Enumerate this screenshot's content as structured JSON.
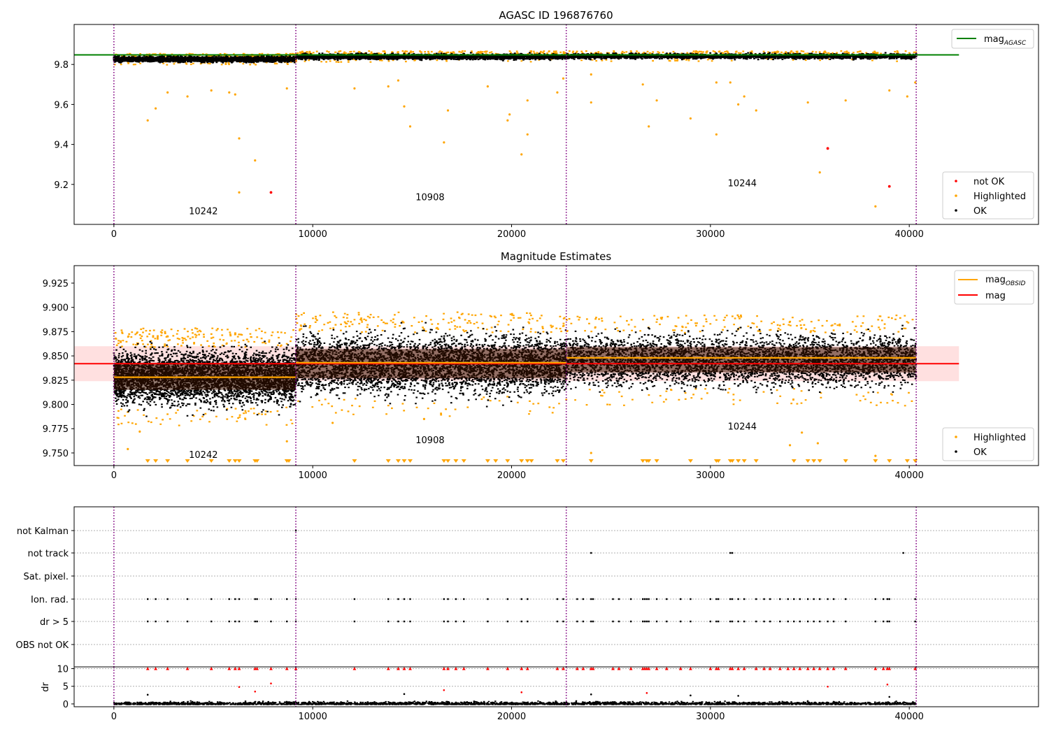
{
  "chart_data": [
    {
      "type": "scatter",
      "title": "AGASC ID 196876760",
      "xlim": [
        -2000,
        46500
      ],
      "ylim": [
        9.0,
        10.0
      ],
      "xticks": [
        0,
        10000,
        20000,
        30000,
        40000
      ],
      "yticks": [
        9.2,
        9.4,
        9.6,
        9.8
      ],
      "obsid_boundaries": [
        0,
        9150,
        22750,
        40350
      ],
      "obsid_labels": [
        {
          "text": "10242",
          "x": 4500,
          "y": 9.05
        },
        {
          "text": "10908",
          "x": 15900,
          "y": 9.12
        },
        {
          "text": "10244",
          "x": 31600,
          "y": 9.19
        }
      ],
      "mag_agasc": {
        "value": 9.848,
        "x_range": [
          -2000,
          42500
        ]
      },
      "bands": [
        {
          "x_range": [
            0,
            9150
          ],
          "center": 9.83,
          "spread": 0.014
        },
        {
          "x_range": [
            9150,
            22750
          ],
          "center": 9.843,
          "spread": 0.014
        },
        {
          "x_range": [
            22750,
            40350
          ],
          "center": 9.845,
          "spread": 0.013
        }
      ],
      "outliers_highlighted": [
        [
          1700,
          9.52
        ],
        [
          2100,
          9.58
        ],
        [
          2700,
          9.66
        ],
        [
          3700,
          9.64
        ],
        [
          4900,
          9.67
        ],
        [
          5800,
          9.66
        ],
        [
          6100,
          9.65
        ],
        [
          6300,
          9.43
        ],
        [
          6300,
          9.16
        ],
        [
          7100,
          9.32
        ],
        [
          8700,
          9.68
        ],
        [
          12100,
          9.68
        ],
        [
          13800,
          9.69
        ],
        [
          14300,
          9.72
        ],
        [
          14600,
          9.59
        ],
        [
          14900,
          9.49
        ],
        [
          16600,
          9.41
        ],
        [
          16800,
          9.57
        ],
        [
          18800,
          9.69
        ],
        [
          19800,
          9.52
        ],
        [
          19900,
          9.55
        ],
        [
          20500,
          9.35
        ],
        [
          20800,
          9.45
        ],
        [
          20800,
          9.62
        ],
        [
          22300,
          9.66
        ],
        [
          22600,
          9.73
        ],
        [
          24000,
          9.75
        ],
        [
          24000,
          9.61
        ],
        [
          26600,
          9.7
        ],
        [
          26900,
          9.49
        ],
        [
          27300,
          9.62
        ],
        [
          29000,
          9.53
        ],
        [
          30300,
          9.71
        ],
        [
          30300,
          9.45
        ],
        [
          31000,
          9.71
        ],
        [
          31400,
          9.6
        ],
        [
          31700,
          9.64
        ],
        [
          32300,
          9.57
        ],
        [
          34900,
          9.61
        ],
        [
          35500,
          9.26
        ],
        [
          36800,
          9.62
        ],
        [
          38300,
          9.09
        ],
        [
          39000,
          9.67
        ],
        [
          39900,
          9.64
        ],
        [
          40300,
          9.71
        ]
      ],
      "outliers_not_ok": [
        [
          7900,
          9.16
        ],
        [
          35900,
          9.38
        ],
        [
          39000,
          9.19
        ]
      ],
      "legend_lines": [
        {
          "label": "mag",
          "sub": "AGASC",
          "color": "#008000"
        }
      ],
      "legend_points": [
        {
          "label": "not OK",
          "color": "#ff0000"
        },
        {
          "label": "Highlighted",
          "color": "#ffa500"
        },
        {
          "label": "OK",
          "color": "#000000"
        }
      ]
    },
    {
      "type": "scatter",
      "title": "Magnitude Estimates",
      "xlim": [
        -2000,
        46500
      ],
      "ylim": [
        9.737,
        9.943
      ],
      "xticks": [
        0,
        10000,
        20000,
        30000,
        40000
      ],
      "yticks": [
        9.75,
        9.775,
        9.8,
        9.825,
        9.85,
        9.875,
        9.9,
        9.925
      ],
      "obsid_boundaries": [
        0,
        9150,
        22750,
        40350
      ],
      "obsid_labels": [
        {
          "text": "10242",
          "x": 4500,
          "y": 9.745
        },
        {
          "text": "10908",
          "x": 15900,
          "y": 9.76
        },
        {
          "text": "10244",
          "x": 31600,
          "y": 9.774
        }
      ],
      "mag": {
        "value": 9.842,
        "band": [
          9.824,
          9.86
        ],
        "x_range": [
          -2000,
          42500
        ]
      },
      "mag_obsid": [
        {
          "value": 9.828,
          "x_range": [
            0,
            9150
          ]
        },
        {
          "value": 9.843,
          "x_range": [
            9150,
            22750
          ]
        },
        {
          "value": 9.848,
          "x_range": [
            22750,
            40350
          ]
        }
      ],
      "bands": [
        {
          "x_range": [
            0,
            9150
          ],
          "center": 9.829,
          "spread": 0.014
        },
        {
          "x_range": [
            9150,
            22750
          ],
          "center": 9.842,
          "spread": 0.015
        },
        {
          "x_range": [
            22750,
            40350
          ],
          "center": 9.846,
          "spread": 0.013
        }
      ],
      "low_markers_x": [
        1700,
        2100,
        2700,
        3700,
        4900,
        5800,
        6100,
        6300,
        7100,
        7200,
        8700,
        8800,
        12100,
        13800,
        14300,
        14600,
        14900,
        16600,
        16800,
        17200,
        17600,
        18800,
        19200,
        19800,
        20500,
        20800,
        21000,
        22300,
        22600,
        24000,
        26600,
        26800,
        26900,
        27300,
        29000,
        30300,
        30400,
        31000,
        31100,
        31400,
        31700,
        32300,
        34200,
        34900,
        35200,
        35500,
        36800,
        38300,
        39000,
        39900,
        40300
      ],
      "extra_highlighted": [
        [
          700,
          9.754
        ],
        [
          1300,
          9.772
        ],
        [
          8700,
          9.762
        ],
        [
          11000,
          9.781
        ],
        [
          15600,
          9.785
        ],
        [
          24000,
          9.75
        ],
        [
          34000,
          9.758
        ],
        [
          34600,
          9.771
        ],
        [
          35400,
          9.76
        ],
        [
          38300,
          9.747
        ]
      ],
      "legend_lines": [
        {
          "label": "mag",
          "sub": "OBSID",
          "color": "#ffa500"
        },
        {
          "label": "mag",
          "sub": "",
          "color": "#ff0000"
        }
      ],
      "legend_points": [
        {
          "label": "Highlighted",
          "color": "#ffa500"
        },
        {
          "label": "OK",
          "color": "#000000"
        }
      ]
    },
    {
      "type": "scatter",
      "xlim": [
        -2000,
        46500
      ],
      "xticks": [
        0,
        10000,
        20000,
        30000,
        40000
      ],
      "obsid_boundaries": [
        0,
        9150,
        22750,
        40350
      ],
      "flag_rows": [
        "not Kalman",
        "not track",
        "Sat. pixel.",
        "Ion. rad.",
        "dr > 5",
        "OBS not OK"
      ],
      "flag_points": {
        "not Kalman": [
          9150
        ],
        "not track": [
          24000,
          31000,
          31100,
          39700
        ],
        "Sat. pixel.": [],
        "Ion. rad.": [
          1700,
          2100,
          2700,
          3700,
          4900,
          5800,
          6100,
          6300,
          7100,
          7200,
          7900,
          8700,
          9150,
          12100,
          13800,
          14300,
          14600,
          14900,
          16600,
          16800,
          17200,
          17600,
          18800,
          19800,
          20500,
          20800,
          22300,
          22600,
          23300,
          23600,
          24000,
          24100,
          25100,
          25400,
          26000,
          26600,
          26700,
          26800,
          26900,
          27300,
          27800,
          28500,
          29000,
          30000,
          30300,
          30400,
          31000,
          31100,
          31400,
          31700,
          32300,
          32700,
          33000,
          33500,
          33900,
          34200,
          34500,
          34900,
          35200,
          35500,
          35900,
          36200,
          36800,
          38300,
          38700,
          38900,
          39000,
          40300
        ],
        "dr > 5": [
          1700,
          2100,
          2700,
          3700,
          4900,
          5800,
          6100,
          6300,
          7100,
          7200,
          7900,
          8700,
          9150,
          12100,
          13800,
          14300,
          14600,
          14900,
          16600,
          16800,
          17200,
          17600,
          18800,
          19800,
          20500,
          20800,
          22300,
          22600,
          23300,
          23600,
          24000,
          24100,
          25100,
          25400,
          26000,
          26600,
          26700,
          26800,
          26900,
          27300,
          27800,
          28500,
          29000,
          30000,
          30300,
          30400,
          31000,
          31100,
          31400,
          31700,
          32300,
          32700,
          33000,
          33500,
          33900,
          34200,
          34500,
          34900,
          35200,
          35500,
          35900,
          36200,
          36800,
          38300,
          38700,
          38900,
          39000,
          40300
        ],
        "OBS not OK": []
      },
      "dr": {
        "ylabel": "dr",
        "ylim": [
          -0.8,
          10.5
        ],
        "yticks": [
          0,
          5,
          10
        ],
        "clip_value": 10,
        "spikes": [
          [
            1700,
            2.6
          ],
          [
            6300,
            4.8
          ],
          [
            7100,
            3.5
          ],
          [
            7900,
            5.8
          ],
          [
            14600,
            2.8
          ],
          [
            16600,
            3.9
          ],
          [
            20500,
            3.3
          ],
          [
            24000,
            2.7
          ],
          [
            26800,
            3.1
          ],
          [
            29000,
            2.4
          ],
          [
            31400,
            2.3
          ],
          [
            35900,
            4.9
          ],
          [
            38900,
            5.5
          ],
          [
            39000,
            2.0
          ]
        ]
      }
    }
  ]
}
